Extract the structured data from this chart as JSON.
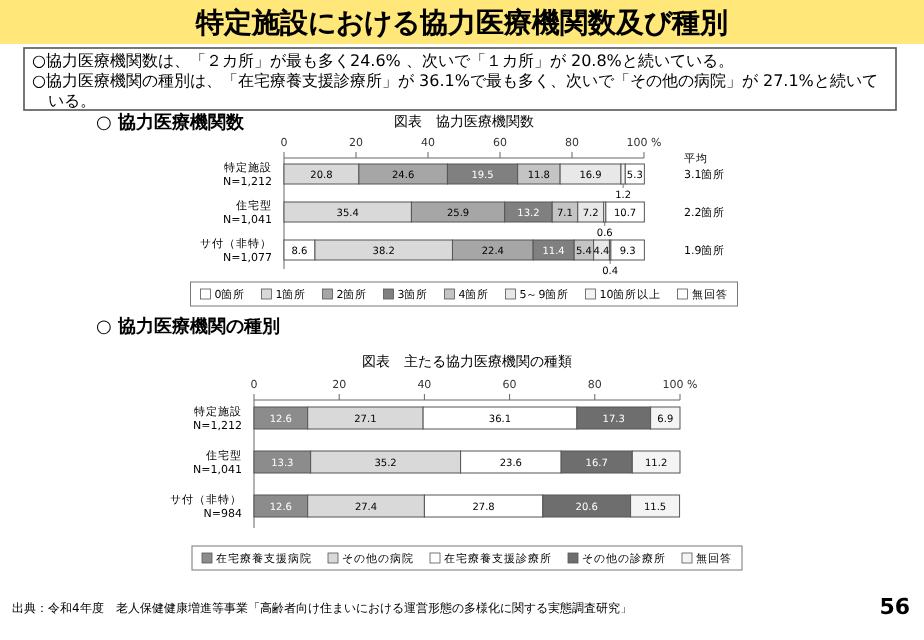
{
  "chart_data": [
    {
      "type": "other",
      "title": "特定施設における協力医療機関数及び種別",
      "annotations": [
        "○協力医療機関数は、「２カ所」が最も多く24.6% 、次いで「１カ所」が 20.8%と続いている。",
        "○協力医療機関の種別は、「在宅療養支援診療所」が 36.1%で最も多く、次いで「その他の病院」が 27.1%と続いている。",
        "出典：令和4年度　老人保健健康増進等事業「高齢者向け住まいにおける運営形態の多様化に関する実態調査研究」",
        "56"
      ]
    },
    {
      "type": "bar",
      "orientation": "horizontal",
      "stacked": true,
      "title": "図表　協力医療機関数",
      "categories": [
        "特定施設\nN=1,212",
        "住宅型\nN=1,041",
        "サ付（非特）\nN=1,077"
      ],
      "series": [
        {
          "name": "0箇所",
          "color": "#ffffff",
          "values": [
            null,
            null,
            8.6
          ]
        },
        {
          "name": "1箇所",
          "color": "#d9d9d9",
          "values": [
            20.8,
            35.4,
            38.2
          ]
        },
        {
          "name": "2箇所",
          "color": "#a6a6a6",
          "values": [
            24.6,
            25.9,
            22.4
          ]
        },
        {
          "name": "3箇所",
          "color": "#808080",
          "values": [
            19.5,
            13.2,
            11.4
          ]
        },
        {
          "name": "4箇所",
          "color": "#c4c4c4",
          "values": [
            11.8,
            7.1,
            5.4
          ]
        },
        {
          "name": "5～9箇所",
          "color": "#e8e8e8",
          "values": [
            16.9,
            7.2,
            4.4
          ]
        },
        {
          "name": "10箇所以上",
          "color": "#f4f4f4",
          "values": [
            1.2,
            0.6,
            0.4
          ]
        },
        {
          "name": "無回答",
          "color": "#ffffff",
          "values": [
            5.3,
            10.7,
            9.3
          ]
        }
      ],
      "xlim": [
        0,
        100
      ],
      "xticks": [
        0,
        20,
        40,
        60,
        80,
        {
          "value": 100,
          "label": "100 %"
        }
      ],
      "data_labels": true,
      "legend": "bottom",
      "grid": false,
      "annotations": [
        "○ 協力医療機関数",
        "平均\n3.1箇所",
        "2.2箇所",
        "1.9箇所"
      ]
    },
    {
      "type": "bar",
      "orientation": "horizontal",
      "stacked": true,
      "title": "図表　主たる協力医療機関の種類",
      "categories": [
        "特定施設\nN=1,212",
        "住宅型\nN=1,041",
        "サ付（非特）\nN=984"
      ],
      "series": [
        {
          "name": "在宅療養支援病院",
          "color": "#8c8c8c",
          "values": [
            12.6,
            13.3,
            12.6
          ]
        },
        {
          "name": "その他の病院",
          "color": "#d9d9d9",
          "values": [
            27.1,
            35.2,
            27.4
          ]
        },
        {
          "name": "在宅療養支援診療所",
          "color": "#ffffff",
          "values": [
            36.1,
            23.6,
            27.8
          ]
        },
        {
          "name": "その他の診療所",
          "color": "#6e6e6e",
          "values": [
            17.3,
            16.7,
            20.6
          ]
        },
        {
          "name": "無回答",
          "color": "#f4f4f4",
          "values": [
            6.9,
            11.2,
            11.5
          ]
        }
      ],
      "xlim": [
        0,
        100
      ],
      "xticks": [
        0,
        20,
        40,
        60,
        80,
        {
          "value": 100,
          "label": "100 %"
        }
      ],
      "data_labels": true,
      "legend": "bottom",
      "grid": false,
      "annotations": [
        "○ 協力医療機関の種別"
      ]
    }
  ]
}
